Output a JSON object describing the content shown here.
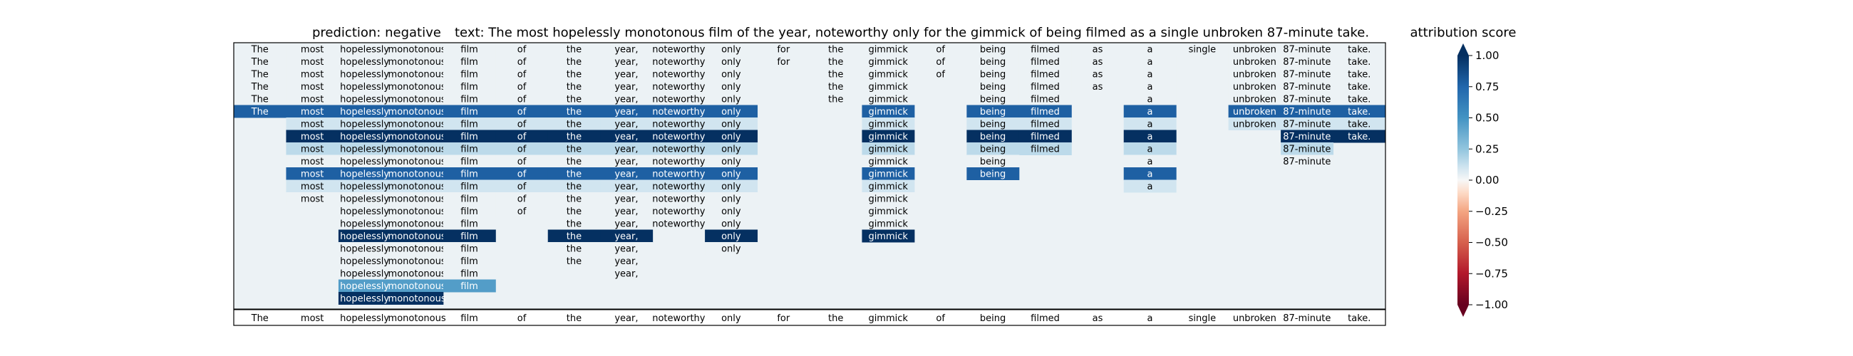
{
  "chart_data": {
    "type": "heatmap",
    "title_prediction": "prediction:  negative",
    "title_text": "text:  The most hopelessly monotonous film of the year, noteworthy only for the gimmick of being filmed as a single unbroken 87-minute take.",
    "tokens": [
      "The",
      "most",
      "hopelessly",
      "monotonous",
      "film",
      "of",
      "the",
      "year,",
      "noteworthy",
      "only",
      "for",
      "the",
      "gimmick",
      "of",
      "being",
      "filmed",
      "as",
      "a",
      "single",
      "unbroken",
      "87-minute",
      "take."
    ],
    "rows": [
      {
        "tokens": [
          0,
          1,
          2,
          3,
          4,
          5,
          6,
          7,
          8,
          9,
          10,
          11,
          12,
          13,
          14,
          15,
          16,
          17,
          18,
          19,
          20,
          21
        ],
        "values": [
          0.03,
          0.03,
          0.03,
          0.03,
          0.03,
          0.03,
          0.03,
          0.03,
          0.03,
          0.03,
          0.03,
          0.03,
          0.03,
          0.03,
          0.03,
          0.03,
          0.03,
          0.03,
          0.03,
          0.03,
          0.03,
          0.03
        ]
      },
      {
        "tokens": [
          0,
          1,
          2,
          3,
          4,
          5,
          6,
          7,
          8,
          9,
          10,
          11,
          12,
          13,
          14,
          15,
          16,
          17,
          19,
          20,
          21
        ],
        "values": [
          0.03,
          0.03,
          0.03,
          0.03,
          0.03,
          0.03,
          0.03,
          0.03,
          0.03,
          0.03,
          0.03,
          0.03,
          0.03,
          0.03,
          0.03,
          0.03,
          0.03,
          0.03,
          0.03,
          0.03,
          0.03
        ]
      },
      {
        "tokens": [
          0,
          1,
          2,
          3,
          4,
          5,
          6,
          7,
          8,
          9,
          11,
          12,
          13,
          14,
          15,
          16,
          17,
          19,
          20,
          21
        ],
        "values": [
          0.03,
          0.03,
          0.03,
          0.03,
          0.03,
          0.03,
          0.03,
          0.03,
          0.03,
          0.03,
          0.03,
          0.03,
          0.03,
          0.03,
          0.03,
          0.03,
          0.03,
          0.03,
          0.03,
          0.03
        ]
      },
      {
        "tokens": [
          0,
          1,
          2,
          3,
          4,
          5,
          6,
          7,
          8,
          9,
          11,
          12,
          14,
          15,
          16,
          17,
          19,
          20,
          21
        ],
        "values": [
          0.03,
          0.03,
          0.03,
          0.03,
          0.03,
          0.03,
          0.03,
          0.03,
          0.03,
          0.03,
          0.03,
          0.03,
          0.03,
          0.03,
          0.03,
          0.03,
          0.03,
          0.03,
          0.03
        ]
      },
      {
        "tokens": [
          0,
          1,
          2,
          3,
          4,
          5,
          6,
          7,
          8,
          9,
          11,
          12,
          14,
          15,
          17,
          19,
          20,
          21
        ],
        "values": [
          0.03,
          0.03,
          0.03,
          0.03,
          0.03,
          0.03,
          0.03,
          0.03,
          0.03,
          0.03,
          0.03,
          0.03,
          0.03,
          0.03,
          0.03,
          0.03,
          0.03,
          0.03
        ]
      },
      {
        "tokens": [
          0,
          1,
          2,
          3,
          4,
          5,
          6,
          7,
          8,
          9,
          12,
          14,
          15,
          17,
          19,
          20,
          21
        ],
        "values": [
          0.78,
          0.78,
          0.78,
          0.78,
          0.78,
          0.78,
          0.78,
          0.78,
          0.78,
          0.78,
          0.78,
          0.78,
          0.78,
          0.78,
          0.78,
          0.78,
          0.78
        ]
      },
      {
        "tokens": [
          1,
          2,
          3,
          4,
          5,
          6,
          7,
          8,
          9,
          12,
          14,
          15,
          17,
          19,
          20,
          21
        ],
        "values": [
          0.1,
          0.1,
          0.1,
          0.1,
          0.1,
          0.1,
          0.1,
          0.1,
          0.1,
          0.1,
          0.1,
          0.1,
          0.1,
          0.1,
          0.1,
          0.1
        ]
      },
      {
        "tokens": [
          1,
          2,
          3,
          4,
          5,
          6,
          7,
          8,
          9,
          12,
          14,
          15,
          17,
          20,
          21
        ],
        "values": [
          1.0,
          1.0,
          1.0,
          1.0,
          1.0,
          1.0,
          1.0,
          1.0,
          1.0,
          1.0,
          1.0,
          1.0,
          1.0,
          1.0,
          1.0
        ]
      },
      {
        "tokens": [
          1,
          2,
          3,
          4,
          5,
          6,
          7,
          8,
          9,
          12,
          14,
          15,
          17,
          20
        ],
        "values": [
          0.15,
          0.15,
          0.15,
          0.15,
          0.15,
          0.15,
          0.15,
          0.15,
          0.15,
          0.15,
          0.15,
          0.15,
          0.15,
          0.15
        ]
      },
      {
        "tokens": [
          1,
          2,
          3,
          4,
          5,
          6,
          7,
          8,
          9,
          12,
          14,
          17,
          20
        ],
        "values": [
          0.03,
          0.03,
          0.03,
          0.03,
          0.03,
          0.03,
          0.03,
          0.03,
          0.03,
          0.03,
          0.03,
          0.03,
          0.03
        ]
      },
      {
        "tokens": [
          1,
          2,
          3,
          4,
          5,
          6,
          7,
          8,
          9,
          12,
          14,
          17
        ],
        "values": [
          0.78,
          0.78,
          0.78,
          0.78,
          0.78,
          0.78,
          0.78,
          0.78,
          0.78,
          0.78,
          0.78,
          0.78
        ]
      },
      {
        "tokens": [
          1,
          2,
          3,
          4,
          5,
          6,
          7,
          8,
          9,
          12,
          17
        ],
        "values": [
          0.1,
          0.1,
          0.1,
          0.1,
          0.1,
          0.1,
          0.1,
          0.1,
          0.1,
          0.1,
          0.1
        ]
      },
      {
        "tokens": [
          1,
          2,
          3,
          4,
          5,
          6,
          7,
          8,
          9,
          12
        ],
        "values": [
          0.03,
          0.03,
          0.03,
          0.03,
          0.03,
          0.03,
          0.03,
          0.03,
          0.03,
          0.03
        ]
      },
      {
        "tokens": [
          2,
          3,
          4,
          5,
          6,
          7,
          8,
          9,
          12
        ],
        "values": [
          0.03,
          0.03,
          0.03,
          0.03,
          0.03,
          0.03,
          0.03,
          0.03,
          0.03
        ]
      },
      {
        "tokens": [
          2,
          3,
          4,
          6,
          7,
          8,
          9,
          12
        ],
        "values": [
          0.03,
          0.03,
          0.03,
          0.03,
          0.03,
          0.03,
          0.03,
          0.03
        ]
      },
      {
        "tokens": [
          2,
          3,
          4,
          6,
          7,
          9,
          12
        ],
        "values": [
          1.0,
          1.0,
          1.0,
          1.0,
          1.0,
          1.0,
          1.0
        ]
      },
      {
        "tokens": [
          2,
          3,
          4,
          6,
          7,
          9
        ],
        "values": [
          0.03,
          0.03,
          0.03,
          0.03,
          0.03,
          0.03
        ]
      },
      {
        "tokens": [
          2,
          3,
          4,
          6,
          7
        ],
        "values": [
          0.03,
          0.03,
          0.03,
          0.03,
          0.03
        ]
      },
      {
        "tokens": [
          2,
          3,
          4,
          7
        ],
        "values": [
          0.03,
          0.03,
          0.03,
          0.03
        ]
      },
      {
        "tokens": [
          2,
          3,
          4
        ],
        "values": [
          0.45,
          0.45,
          0.45
        ]
      },
      {
        "tokens": [
          2,
          3
        ],
        "values": [
          1.0,
          1.0
        ]
      }
    ],
    "bottom_row_tokens": [
      "The",
      "most",
      "hopelessly",
      "monotonous",
      "film",
      "of",
      "the",
      "year,",
      "noteworthy",
      "only",
      "for",
      "the",
      "gimmick",
      "of",
      "being",
      "filmed",
      "as",
      "a",
      "single",
      "unbroken",
      "87-minute",
      "take."
    ],
    "colorbar": {
      "label": "attribution score",
      "range": [
        -1.0,
        1.0
      ],
      "ticks": [
        1.0,
        0.75,
        0.5,
        0.25,
        0.0,
        -0.25,
        -0.5,
        -0.75,
        -1.0
      ],
      "tick_labels": [
        "1.00",
        "0.75",
        "0.50",
        "0.25",
        "0.00",
        "−0.25",
        "−0.50",
        "−0.75",
        "−1.00"
      ],
      "colormap": "RdBu",
      "extend": "both"
    },
    "colors": {
      "neg_dark": "#67001f",
      "neg_mid": "#d6604d",
      "neutral": "#f7f7f7",
      "pos_mid": "#4393c3",
      "pos_dark": "#053061"
    }
  }
}
